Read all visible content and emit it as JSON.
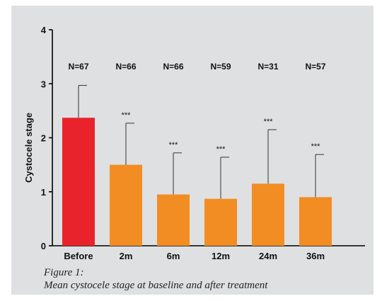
{
  "caption": {
    "line1": "Figure 1:",
    "line2": "Mean cystocele stage at baseline and after treatment"
  },
  "chart_data": {
    "type": "bar",
    "title": "",
    "xlabel": "",
    "ylabel": "Cystocele stage",
    "ylim": [
      0,
      4
    ],
    "yticks": [
      0,
      1,
      2,
      3,
      4
    ],
    "grid": false,
    "categories": [
      "Before",
      "2m",
      "6m",
      "12m",
      "24m",
      "36m"
    ],
    "values": [
      2.37,
      1.5,
      0.95,
      0.87,
      1.15,
      0.9
    ],
    "error_upper": [
      0.6,
      0.77,
      0.77,
      0.77,
      1.0,
      0.79
    ],
    "n_labels": [
      "N=67",
      "N=66",
      "N=66",
      "N=59",
      "N=31",
      "N=57"
    ],
    "significance": [
      "",
      "***",
      "***",
      "***",
      "***",
      "***"
    ],
    "colors": [
      "#e8232b",
      "#f28d24",
      "#f28d24",
      "#f28d24",
      "#f28d24",
      "#f28d24"
    ]
  }
}
